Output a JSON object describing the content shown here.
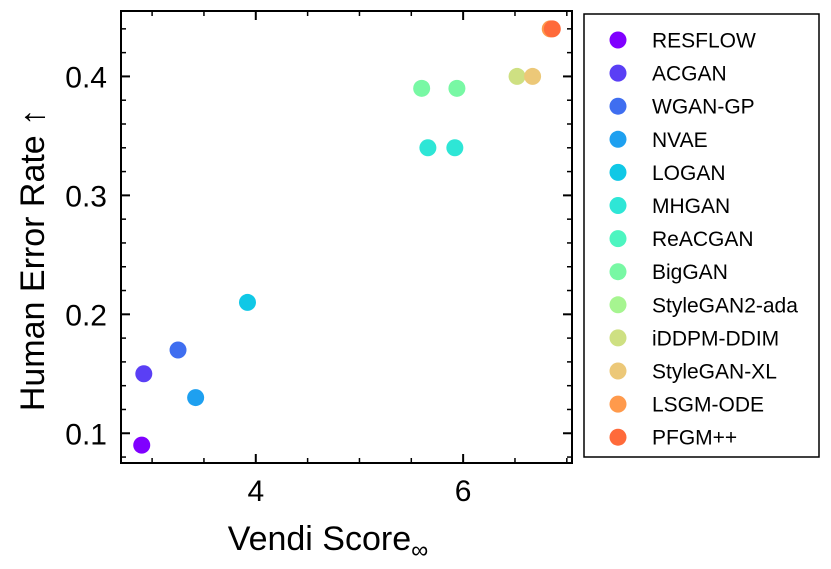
{
  "chart_data": {
    "type": "scatter",
    "xlabel": "Vendi Score",
    "xlabel_subscript": "∞",
    "ylabel": "Human Error Rate ↑",
    "xlim": [
      2.7,
      7.05
    ],
    "ylim": [
      0.075,
      0.455
    ],
    "xticks": [
      4,
      6
    ],
    "xtick_labels": [
      "4",
      "6"
    ],
    "yticks": [
      0.1,
      0.2,
      0.3,
      0.4
    ],
    "ytick_labels": [
      "0.1",
      "0.2",
      "0.3",
      "0.4"
    ],
    "grid": false,
    "legend_position": "right, outside plot",
    "series": [
      {
        "name": "RESFLOW",
        "color": "#8000ff",
        "points": [
          [
            2.9,
            0.09
          ]
        ]
      },
      {
        "name": "ACGAN",
        "color": "#5a3ff5",
        "points": [
          [
            2.92,
            0.15
          ]
        ]
      },
      {
        "name": "WGAN-GP",
        "color": "#3f6ef0",
        "points": [
          [
            3.25,
            0.17
          ]
        ]
      },
      {
        "name": "NVAE",
        "color": "#1ea0f0",
        "points": [
          [
            3.42,
            0.13
          ]
        ]
      },
      {
        "name": "LOGAN",
        "color": "#10c8e6",
        "points": [
          [
            3.92,
            0.21
          ]
        ]
      },
      {
        "name": "MHGAN",
        "color": "#2ee6d6",
        "points": [
          [
            5.66,
            0.34
          ],
          [
            5.92,
            0.34
          ]
        ]
      },
      {
        "name": "ReACGAN",
        "color": "#4df5c0",
        "points": []
      },
      {
        "name": "BigGAN",
        "color": "#78f8a4",
        "points": [
          [
            5.6,
            0.39
          ],
          [
            5.94,
            0.39
          ]
        ]
      },
      {
        "name": "StyleGAN2-ada",
        "color": "#a6f590",
        "points": []
      },
      {
        "name": "iDDPM-DDIM",
        "color": "#cee082",
        "points": [
          [
            6.52,
            0.4
          ]
        ]
      },
      {
        "name": "StyleGAN-XL",
        "color": "#ecc878",
        "points": [
          [
            6.67,
            0.4
          ]
        ]
      },
      {
        "name": "LSGM-ODE",
        "color": "#ff9a4c",
        "points": [
          [
            6.84,
            0.44
          ]
        ]
      },
      {
        "name": "PFGM++",
        "color": "#ff6a3a",
        "points": [
          [
            6.86,
            0.44
          ]
        ]
      }
    ]
  }
}
